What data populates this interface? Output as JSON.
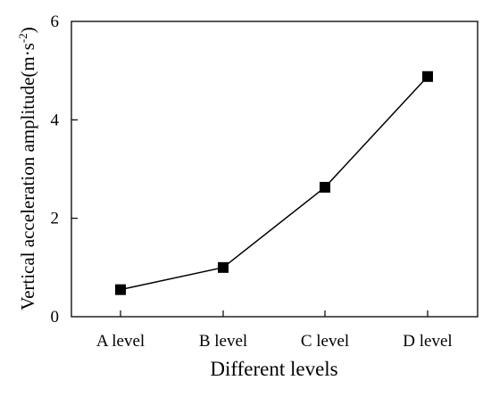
{
  "chart_data": {
    "type": "line",
    "categories": [
      "A level",
      "B level",
      "C level",
      "D level"
    ],
    "series": [
      {
        "values": [
          0.55,
          1.0,
          2.63,
          4.88
        ],
        "marker": "square",
        "color": "#000000"
      }
    ],
    "title": "",
    "xlabel": "Different levels",
    "ylabel_main": "Vertical acceleration amplitude(m·s",
    "ylabel_sup": "-2",
    "ylabel_tail": ")",
    "ylim": [
      0,
      6
    ],
    "yticks": [
      "0",
      "2",
      "4",
      "6"
    ],
    "grid": false,
    "legend": "none"
  }
}
